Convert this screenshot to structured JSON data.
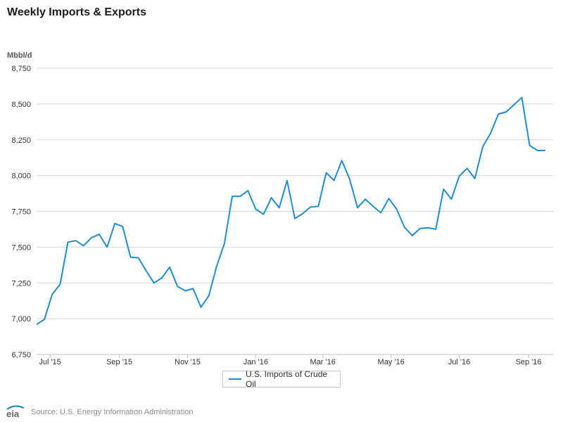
{
  "title": "Weekly Imports & Exports",
  "source": "Source: U.S. Energy Information Administration",
  "logo_text": "eia",
  "colors": {
    "line": "#1f8dd6",
    "grid": "#d4d4d4",
    "axis_text": "#333333"
  },
  "chart_data": {
    "type": "line",
    "ylabel": "Mbbl/d",
    "ylim": [
      6750,
      8750
    ],
    "yticks": [
      6750,
      7000,
      7250,
      7500,
      7750,
      8000,
      8250,
      8500,
      8750
    ],
    "ytick_labels": [
      "6,750",
      "7,000",
      "7,250",
      "7,500",
      "7,750",
      "8,000",
      "8,250",
      "8,500",
      "8,750"
    ],
    "xlim": [
      "2015-06-19",
      "2016-09-23"
    ],
    "xticks": [
      {
        "date": "2015-07-01",
        "label": "Jul '15"
      },
      {
        "date": "2015-09-01",
        "label": "Sep '15"
      },
      {
        "date": "2015-11-01",
        "label": "Nov '15"
      },
      {
        "date": "2016-01-01",
        "label": "Jan '16"
      },
      {
        "date": "2016-03-01",
        "label": "Mar '16"
      },
      {
        "date": "2016-05-01",
        "label": "May '16"
      },
      {
        "date": "2016-07-01",
        "label": "Jul '16"
      },
      {
        "date": "2016-09-01",
        "label": "Sep '16"
      }
    ],
    "legend": "bottom-center",
    "grid": true,
    "series": [
      {
        "name": "U.S. Imports of Crude Oil",
        "x": [
          "2015-06-19",
          "2015-06-26",
          "2015-07-03",
          "2015-07-10",
          "2015-07-17",
          "2015-07-24",
          "2015-07-31",
          "2015-08-07",
          "2015-08-14",
          "2015-08-21",
          "2015-08-28",
          "2015-09-04",
          "2015-09-11",
          "2015-09-18",
          "2015-09-25",
          "2015-10-02",
          "2015-10-09",
          "2015-10-16",
          "2015-10-23",
          "2015-10-30",
          "2015-11-06",
          "2015-11-13",
          "2015-11-20",
          "2015-11-27",
          "2015-12-04",
          "2015-12-11",
          "2015-12-18",
          "2015-12-25",
          "2016-01-01",
          "2016-01-08",
          "2016-01-15",
          "2016-01-22",
          "2016-01-29",
          "2016-02-05",
          "2016-02-12",
          "2016-02-19",
          "2016-02-26",
          "2016-03-04",
          "2016-03-11",
          "2016-03-18",
          "2016-03-25",
          "2016-04-01",
          "2016-04-08",
          "2016-04-15",
          "2016-04-22",
          "2016-04-29",
          "2016-05-06",
          "2016-05-13",
          "2016-05-20",
          "2016-05-27",
          "2016-06-03",
          "2016-06-10",
          "2016-06-17",
          "2016-06-24",
          "2016-07-01",
          "2016-07-08",
          "2016-07-15",
          "2016-07-22",
          "2016-07-29",
          "2016-08-05",
          "2016-08-12",
          "2016-08-19",
          "2016-08-26",
          "2016-09-02",
          "2016-09-09",
          "2016-09-16"
        ],
        "y": [
          6960,
          6995,
          7170,
          7240,
          7535,
          7545,
          7510,
          7565,
          7590,
          7500,
          7665,
          7645,
          7430,
          7425,
          7335,
          7250,
          7285,
          7360,
          7225,
          7195,
          7210,
          7080,
          7160,
          7365,
          7525,
          7855,
          7855,
          7895,
          7765,
          7730,
          7845,
          7775,
          7965,
          7700,
          7735,
          7780,
          7785,
          8020,
          7965,
          8105,
          7975,
          7775,
          7835,
          7785,
          7740,
          7840,
          7765,
          7640,
          7580,
          7630,
          7635,
          7625,
          7905,
          7835,
          7995,
          8050,
          7980,
          8200,
          8295,
          8430,
          8445,
          8495,
          8545,
          8210,
          8175,
          8175
        ]
      }
    ]
  }
}
